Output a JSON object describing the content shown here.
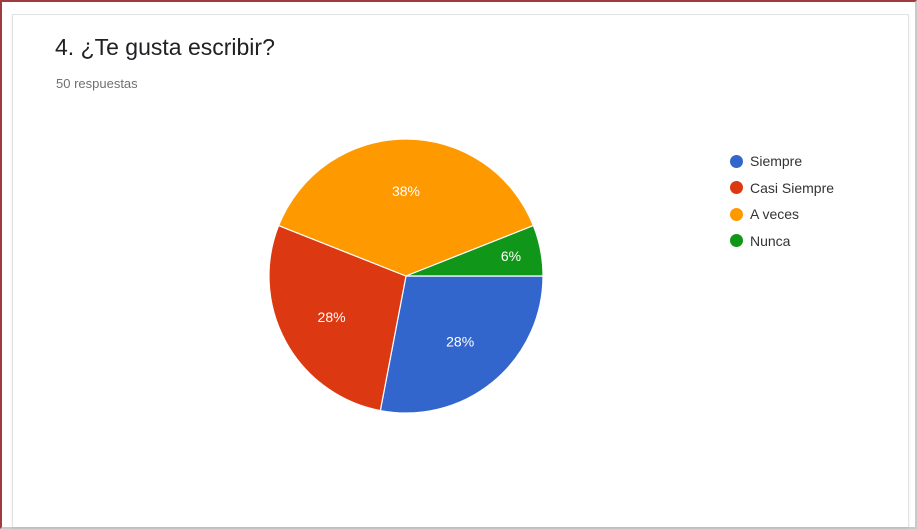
{
  "question": {
    "title": "4. ¿Te gusta escribir?",
    "responses": "50 respuestas"
  },
  "chart_data": {
    "type": "pie",
    "title": "4. ¿Te gusta escribir?",
    "subtitle": "50 respuestas",
    "legend_position": "right",
    "categories": [
      "Siempre",
      "Casi Siempre",
      "A veces",
      "Nunca"
    ],
    "values": [
      28,
      28,
      38,
      6
    ],
    "labels": [
      "28%",
      "28%",
      "38%",
      "6%"
    ],
    "colors": [
      "#3366cc",
      "#dc3912",
      "#ff9900",
      "#109618"
    ]
  }
}
